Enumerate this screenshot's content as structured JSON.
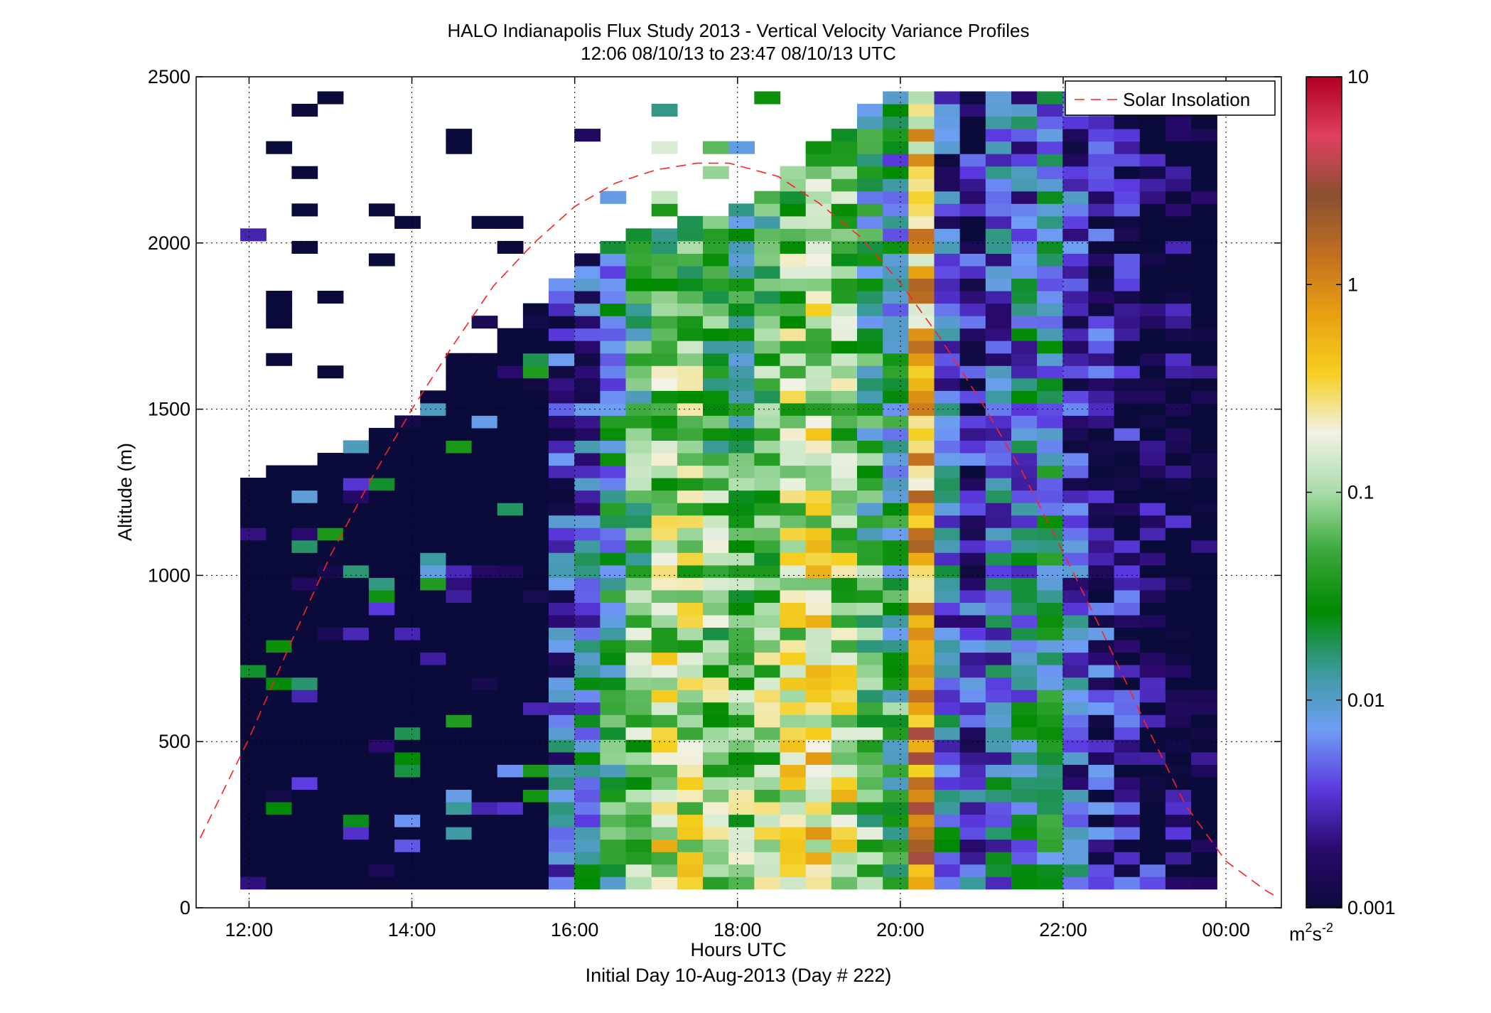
{
  "chart_data": {
    "type": "heatmap",
    "title": "HALO Indianapolis Flux Study 2013 - Vertical Velocity Variance Profiles",
    "subtitle": "12:06 08/10/13 to 23:47 08/10/13  UTC",
    "xlabel": "Hours UTC",
    "xlabel2": "Initial Day 10-Aug-2013 (Day # 222)",
    "ylabel": "Altitude (m)",
    "xlim": [
      11.35,
      24.68
    ],
    "ylim": [
      0,
      2500
    ],
    "x_ticks": [
      12,
      14,
      16,
      18,
      20,
      22,
      24
    ],
    "x_tick_labels": [
      "12:00",
      "14:00",
      "16:00",
      "18:00",
      "20:00",
      "22:00",
      "00:00"
    ],
    "y_ticks": [
      0,
      500,
      1000,
      1500,
      2000,
      2500
    ],
    "y_tick_labels": [
      "0",
      "500",
      "1000",
      "1500",
      "2000",
      "2500"
    ],
    "grid": true,
    "legend": {
      "position": "top-right",
      "entries": [
        "Solar Insolation"
      ]
    },
    "colorbar": {
      "scale": "log",
      "range": [
        0.001,
        10
      ],
      "ticks": [
        0.001,
        0.01,
        0.1,
        1,
        10
      ],
      "tick_labels": [
        "0.001",
        "0.01",
        "0.1",
        "1",
        "10"
      ],
      "unit_base": "m",
      "unit_sup1": "2",
      "unit_mid": "s",
      "unit_sup2": "-2",
      "colors": [
        "#0b0b3b",
        "#2a0a6e",
        "#5a3adf",
        "#6f9ef5",
        "#3a9a9a",
        "#008a00",
        "#3aa83a",
        "#a8dca8",
        "#f2f2e6",
        "#f5d020",
        "#e8a010",
        "#c07020",
        "#8a5030",
        "#e04060",
        "#b00020"
      ]
    },
    "solar_insolation": {
      "x": [
        11.4,
        12.0,
        12.5,
        13.0,
        13.5,
        14.0,
        14.5,
        15.0,
        15.5,
        16.0,
        16.5,
        17.0,
        17.5,
        17.9,
        18.5,
        19.0,
        19.5,
        20.0,
        20.5,
        21.0,
        21.5,
        22.0,
        22.5,
        23.0,
        23.5,
        24.0,
        24.5,
        24.65
      ],
      "y": [
        210,
        510,
        790,
        1060,
        1290,
        1500,
        1690,
        1870,
        2000,
        2110,
        2180,
        2220,
        2240,
        2240,
        2200,
        2120,
        2020,
        1880,
        1710,
        1520,
        1310,
        1070,
        820,
        560,
        310,
        140,
        50,
        30
      ]
    },
    "time_bins": {
      "start": 12.05,
      "end": 23.73,
      "count": 38
    },
    "altitude_bins": {
      "start": 75,
      "step": 37.5,
      "count": 64
    }
  }
}
